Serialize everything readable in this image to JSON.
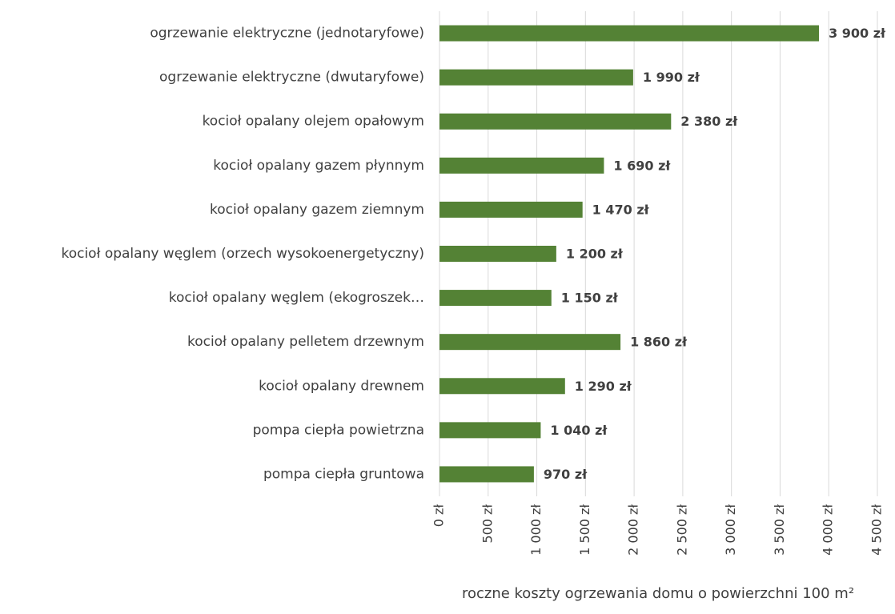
{
  "chart_data": {
    "type": "bar",
    "orientation": "horizontal",
    "x_label": "roczne koszty ogrzewania domu o powierzchni 100 m²",
    "categories": [
      "ogrzewanie elektryczne (jednotaryfowe)",
      "ogrzewanie elektryczne (dwutaryfowe)",
      "kocioł opalany olejem opałowym",
      "kocioł opalany gazem płynnym",
      "kocioł opalany gazem ziemnym",
      "kocioł opalany węglem (orzech wysokoenergetyczny)",
      "kocioł opalany węglem (ekogroszek…",
      "kocioł opalany pelletem drzewnym",
      "kocioł opalany drewnem",
      "pompa ciepła powietrzna",
      "pompa ciepła gruntowa"
    ],
    "values": [
      3900,
      1990,
      2380,
      1690,
      1470,
      1200,
      1150,
      1860,
      1290,
      1040,
      970
    ],
    "value_labels": [
      "3 900 zł",
      "1 990 zł",
      "2 380 zł",
      "1 690 zł",
      "1 470 zł",
      "1 200 zł",
      "1 150 zł",
      "1 860 zł",
      "1 290 zł",
      "1 040 zł",
      "970 zł"
    ],
    "color": "#548235",
    "xlim": [
      0,
      4500
    ],
    "xticks": [
      {
        "value": 0,
        "label": "0 zł"
      },
      {
        "value": 500,
        "label": "500 zł"
      },
      {
        "value": 1000,
        "label": "1 000 zł"
      },
      {
        "value": 1500,
        "label": "1 500 zł"
      },
      {
        "value": 2000,
        "label": "2 000 zł"
      },
      {
        "value": 2500,
        "label": "2 500 zł"
      },
      {
        "value": 3000,
        "label": "3 000 zł"
      },
      {
        "value": 3500,
        "label": "3 500 zł"
      },
      {
        "value": 4000,
        "label": "4 000 zł"
      },
      {
        "value": 4500,
        "label": "4 500 zł"
      }
    ],
    "grid": true
  }
}
